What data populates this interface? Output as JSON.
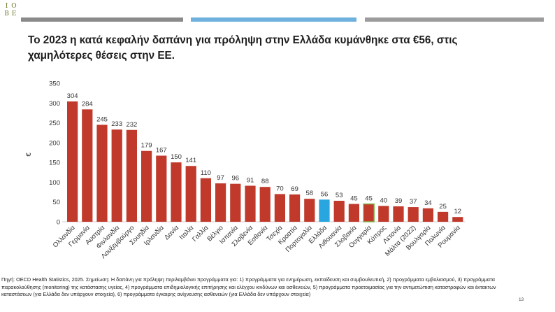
{
  "header": {
    "logo_letters": [
      "Ι",
      "Ο",
      "Β",
      "Ε"
    ],
    "title": "Το 2023 η κατά κεφαλήν δαπάνη για πρόληψη στην Ελλάδα κυμάνθηκε στα €56, στις χαμηλότερες θέσεις στην ΕΕ."
  },
  "colors": {
    "bar": "#c0392b",
    "highlight_greece": "#29a6df",
    "highlight_hungary_outline": "#7ab648",
    "topbar_grey": "#8a8a8a",
    "topbar_blue": "#6fb1de"
  },
  "chart_data": {
    "type": "bar",
    "ylabel": "€",
    "ylim": [
      0,
      350
    ],
    "yticks": [
      0,
      50,
      100,
      150,
      200,
      250,
      300,
      350
    ],
    "grid": false,
    "highlight": {
      "Ελλάδα": "blue fill",
      "Ουγγαρία": "green outline"
    },
    "categories": [
      "Ολλανδία",
      "Γερμανία",
      "Αυστρία",
      "Φινλανδία",
      "Λουξεμβούργο",
      "Σουηδία",
      "Ιρλανδία",
      "Δανία",
      "Ιταλία",
      "Γαλλία",
      "Βέλγιο",
      "Ισπανία",
      "Σλοβενία",
      "Εσθονία",
      "Τσεχία",
      "Κροατία",
      "Πορτογαλία",
      "Ελλάδα",
      "Λιθουανία",
      "Σλοβακία",
      "Ουγγαρία",
      "Κύπρος",
      "Λετονία",
      "Μάλτα (2022)",
      "Βουλγαρία",
      "Πολωνία",
      "Ρουμανία"
    ],
    "values": [
      304,
      284,
      245,
      233,
      232,
      179,
      167,
      150,
      141,
      110,
      97,
      96,
      91,
      88,
      70,
      69,
      58,
      56,
      53,
      45,
      45,
      40,
      39,
      37,
      34,
      25,
      12
    ]
  },
  "footnote": "Πηγή: OECD Health Statistics, 2025. Σημείωση: Η δαπάνη για πρόληψη περιλαμβάνει προγράμματα για: 1) προγράμματα για ενημέρωση, εκπαίδευση και συμβουλευτική, 2) προγράμματα εμβολιασμού, 3) προγράμματα παρακολούθησης (monitoring) της κατάστασης υγείας, 4) προγράμματα επιδημιολογικής επιτήρησης και ελέγχου κινδύνων και ασθενειών, 5) προγράμματα προετοιμασίας για την αντιμετώπιση καταστροφών και έκτακτων καταστάσεων (για Ελλάδα δεν υπάρχουν στοιχεία), 6) προγράμματα έγκαιρης ανίχνευσης ασθενειών (για Ελλάδα δεν υπάρχουν στοιχεία)",
  "page_number": "13"
}
